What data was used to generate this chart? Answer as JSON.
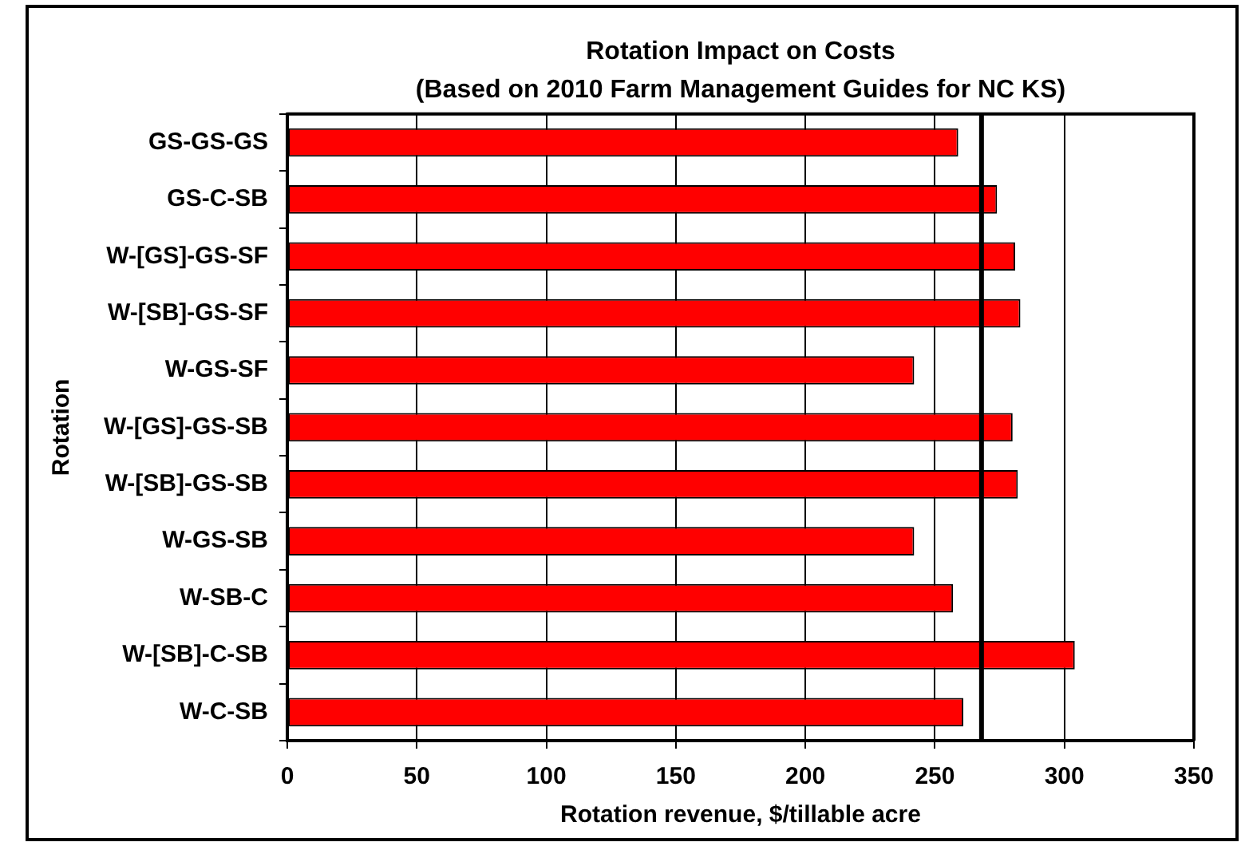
{
  "chart_data": {
    "type": "bar",
    "title": "Rotation Impact on Costs",
    "subtitle": "(Based on 2010 Farm Management Guides for NC KS)",
    "xlabel": "Rotation revenue, $/tillable acre",
    "ylabel": "Rotation",
    "orientation": "horizontal",
    "categories": [
      "GS-GS-GS",
      "GS-C-SB",
      "W-[GS]-GS-SF",
      "W-[SB]-GS-SF",
      "W-GS-SF",
      "W-[GS]-GS-SB",
      "W-[SB]-GS-SB",
      "W-GS-SB",
      "W-SB-C",
      "W-[SB]-C-SB",
      "W-C-SB"
    ],
    "values": [
      259,
      274,
      281,
      283,
      242,
      280,
      282,
      242,
      257,
      304,
      261
    ],
    "color": "#ff0000",
    "xlim": [
      0,
      350
    ],
    "xticks": [
      0,
      50,
      100,
      150,
      200,
      250,
      300,
      350
    ],
    "grid": "x",
    "ref_lines": [
      {
        "axis": "x",
        "value": 268,
        "color": "#000000"
      }
    ]
  }
}
